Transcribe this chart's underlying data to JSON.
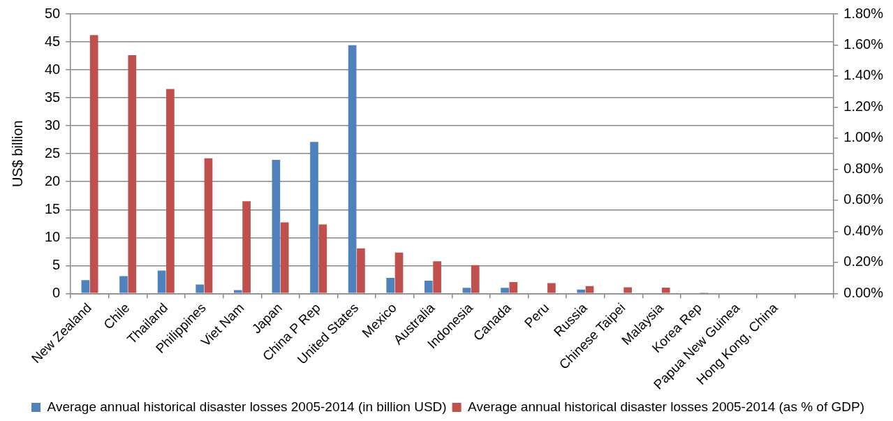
{
  "chart_data": {
    "type": "bar",
    "ylabel": "US$ billion",
    "categories": [
      "New Zealand",
      "Chile",
      "Thailand",
      "Philippines",
      "Viet Nam",
      "Japan",
      "China P Rep",
      "United States",
      "Mexico",
      "Australia",
      "Indonesia",
      "Canada",
      "Peru",
      "Russia",
      "Chinese Taipei",
      "Malaysia",
      "Korea Rep",
      "Papua New Guinea",
      "Hong Kong, China",
      null
    ],
    "series": [
      {
        "name": "Average annual historical disaster losses 2005-2014 (in billion USD)",
        "color": "#4f81bd",
        "values": [
          2.4,
          3.1,
          4.1,
          1.6,
          0.6,
          23.9,
          27.1,
          44.4,
          2.8,
          2.3,
          1,
          1,
          0,
          0.7,
          0.1,
          0,
          0,
          0,
          0,
          null
        ]
      },
      {
        "name": "Average annual historical disaster losses 2005-2014 (as % of GDP)",
        "color": "#c0504d",
        "axis": "y2",
        "values": [
          1.664,
          1.535,
          1.317,
          0.871,
          0.594,
          0.458,
          0.445,
          0.291,
          0.264,
          0.207,
          0.183,
          0.074,
          0.067,
          0.048,
          0.04,
          0.038,
          0.006,
          0,
          0,
          null
        ]
      }
    ],
    "ylim": [
      0,
      50
    ],
    "yticks": [
      0,
      5,
      10,
      15,
      20,
      25,
      30,
      35,
      40,
      45,
      50
    ],
    "y2lim": [
      0,
      1.8
    ],
    "y2ticks": [
      {
        "value": 0,
        "label": "0.00%"
      },
      {
        "value": 0.2,
        "label": "0.20%"
      },
      {
        "value": 0.4,
        "label": "0.40%"
      },
      {
        "value": 0.6,
        "label": "0.60%"
      },
      {
        "value": 0.8,
        "label": "0.80%"
      },
      {
        "value": 1.0,
        "label": "1.00%"
      },
      {
        "value": 1.2,
        "label": "1.20%"
      },
      {
        "value": 1.4,
        "label": "1.40%"
      },
      {
        "value": 1.6,
        "label": "1.60%"
      },
      {
        "value": 1.8,
        "label": "1.80%"
      }
    ],
    "grid": "y",
    "legend": "bottom"
  }
}
